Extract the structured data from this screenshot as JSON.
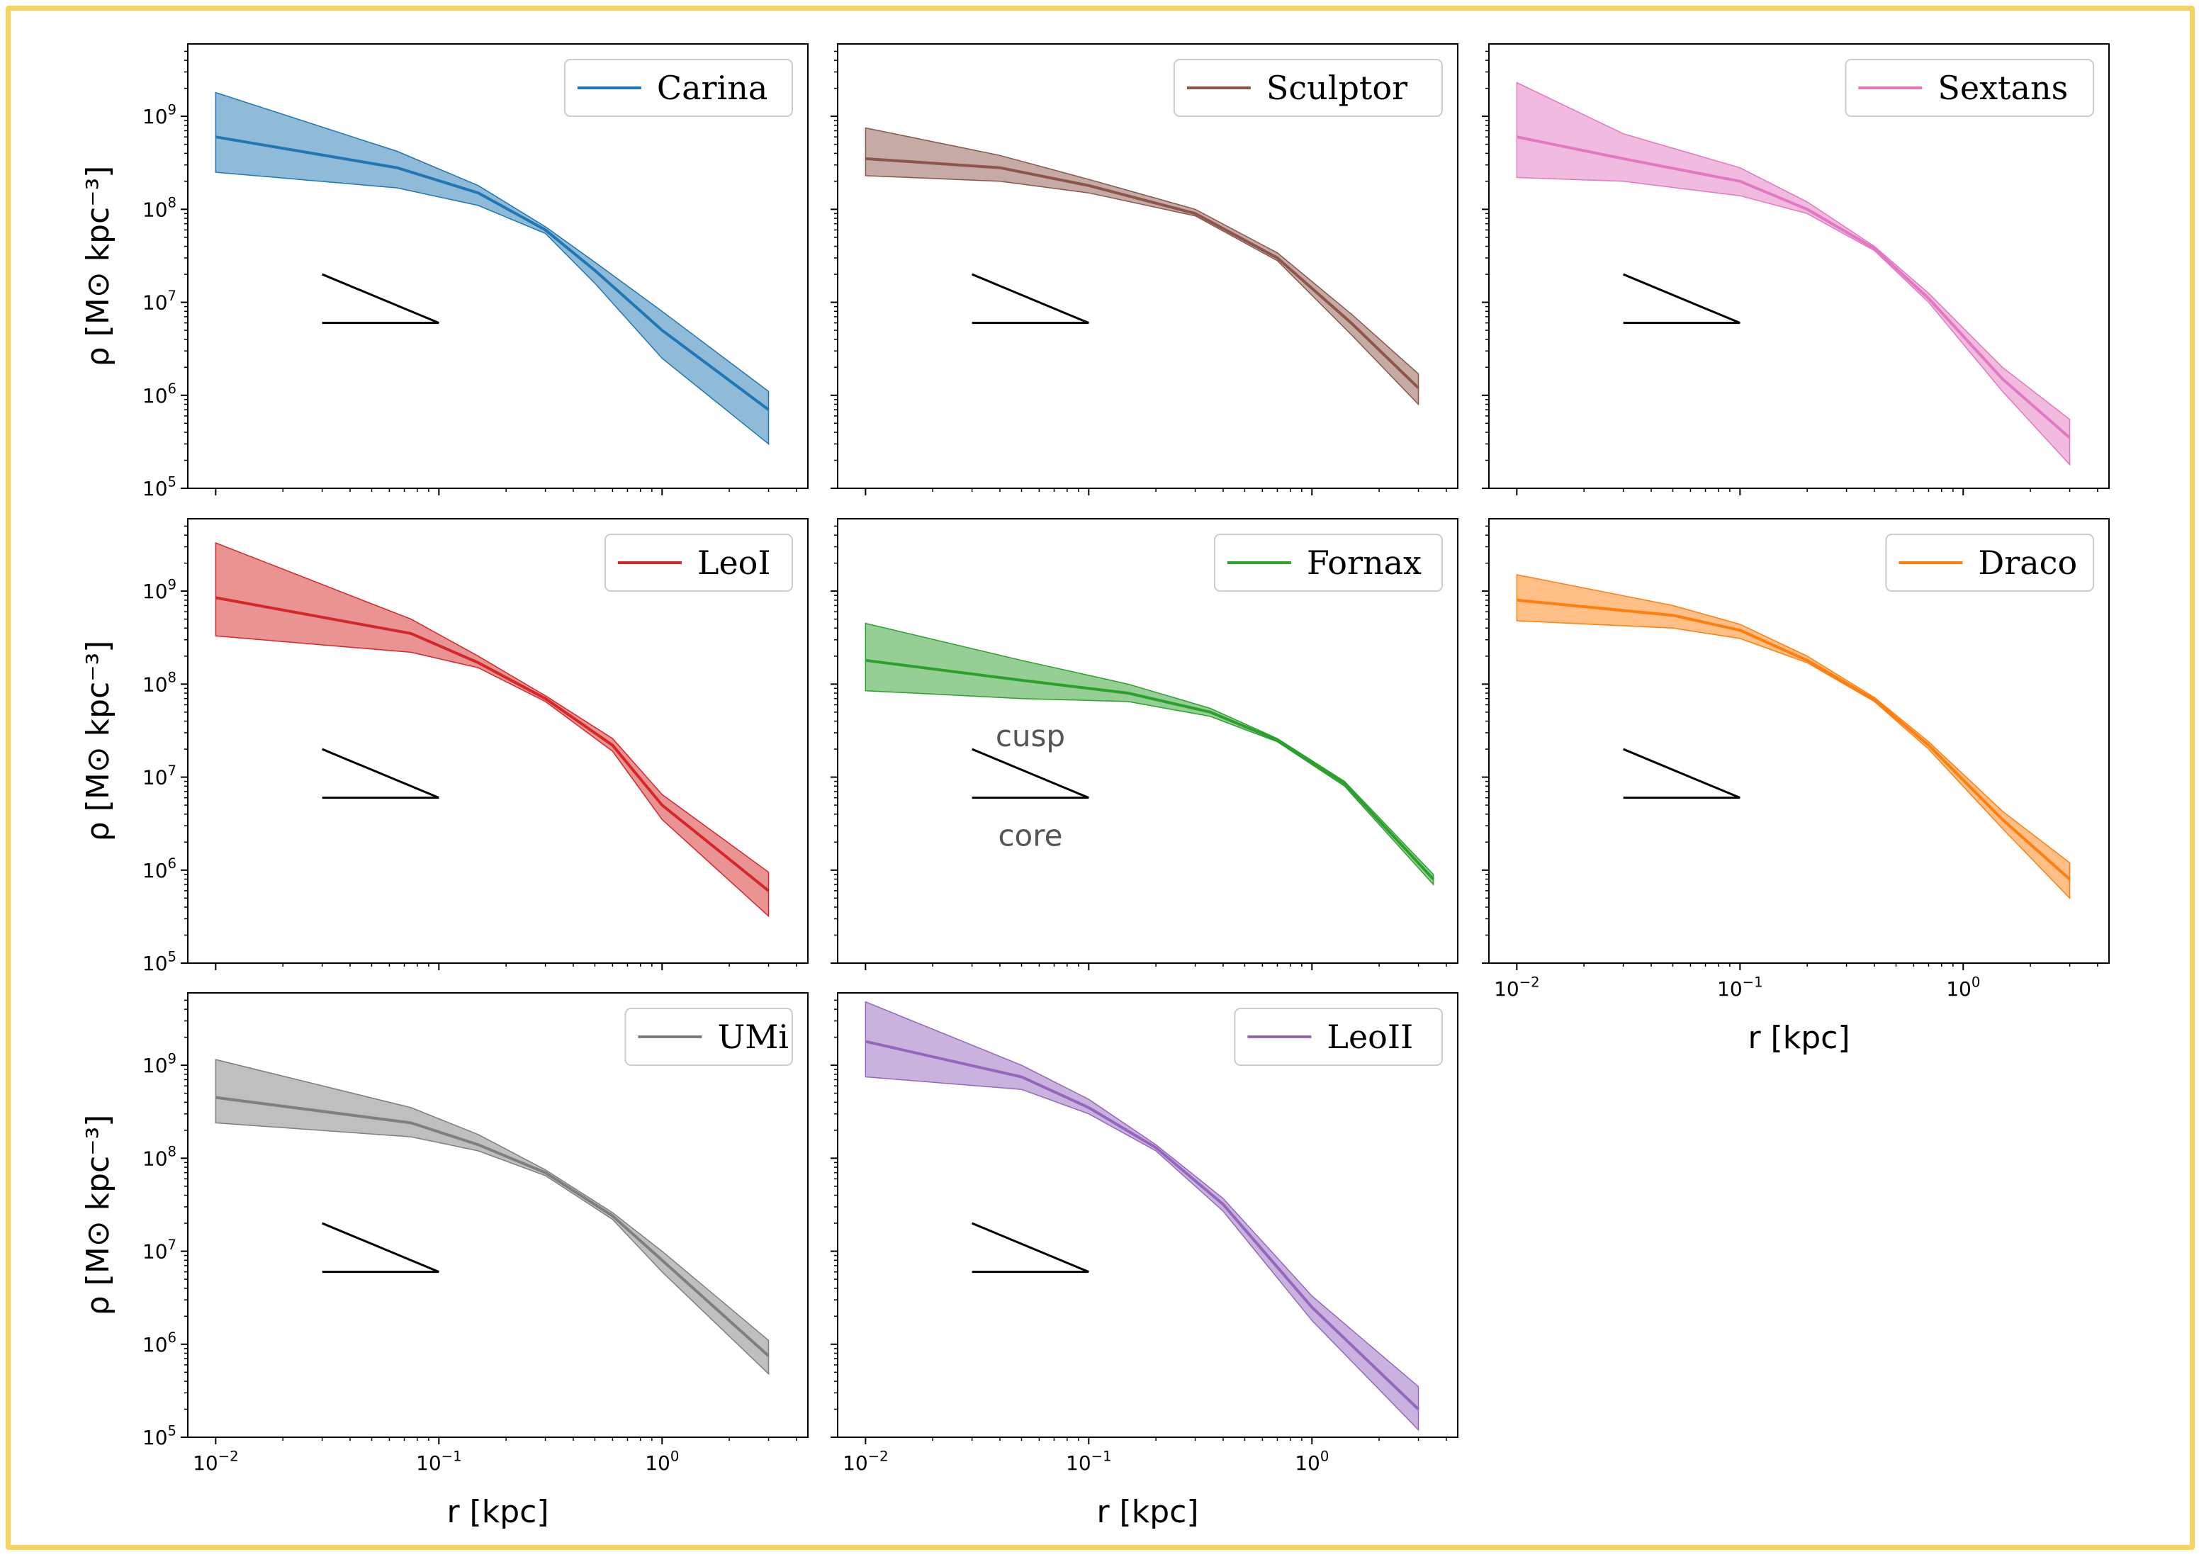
{
  "figure": {
    "frame_color": "#f8d360",
    "ylabel": "ρ [M⊙ kpc⁻³]",
    "xlabel": "r [kpc]",
    "xlim": [
      0.0075,
      4.5
    ],
    "ylim": [
      100000,
      6000000000
    ],
    "xticks": [
      {
        "value": 0.01,
        "base": "10",
        "exp": "−2"
      },
      {
        "value": 0.1,
        "base": "10",
        "exp": "−1"
      },
      {
        "value": 1,
        "base": "10",
        "exp": "0"
      }
    ],
    "yticks": [
      {
        "value": 100000,
        "base": "10",
        "exp": "5"
      },
      {
        "value": 1000000,
        "base": "10",
        "exp": "6"
      },
      {
        "value": 10000000,
        "base": "10",
        "exp": "7"
      },
      {
        "value": 100000000,
        "base": "10",
        "exp": "8"
      },
      {
        "value": 1000000000,
        "base": "10",
        "exp": "9"
      }
    ],
    "slope_guide": {
      "cusp": {
        "x": [
          0.03,
          0.1
        ],
        "y": [
          20000000,
          6000000
        ],
        "label": "cusp"
      },
      "core": {
        "x": [
          0.03,
          0.1
        ],
        "y": [
          6000000,
          6000000
        ],
        "label": "core"
      }
    }
  },
  "chart_data": [
    {
      "type": "line",
      "name": "Carina",
      "color": "#1f77b4",
      "row": 0,
      "col": 0,
      "x": [
        0.01,
        0.065,
        0.15,
        0.3,
        0.5,
        1.0,
        3.0
      ],
      "y": [
        600000000,
        280000000,
        150000000,
        60000000,
        22000000,
        5000000,
        700000
      ],
      "y_low": [
        250000000,
        170000000,
        110000000,
        55000000,
        16000000,
        2500000,
        300000
      ],
      "y_high": [
        1800000000,
        420000000,
        180000000,
        65000000,
        27000000,
        8000000,
        1100000
      ],
      "annotations": false
    },
    {
      "type": "line",
      "name": "Sculptor",
      "color": "#8c564b",
      "row": 0,
      "col": 1,
      "x": [
        0.01,
        0.04,
        0.1,
        0.3,
        0.7,
        1.5,
        3.0
      ],
      "y": [
        350000000,
        280000000,
        180000000,
        90000000,
        30000000,
        6000000,
        1200000
      ],
      "y_low": [
        230000000,
        200000000,
        150000000,
        85000000,
        28000000,
        4500000,
        800000
      ],
      "y_high": [
        750000000,
        380000000,
        210000000,
        100000000,
        34000000,
        7500000,
        1700000
      ],
      "annotations": false
    },
    {
      "type": "line",
      "name": "Sextans",
      "color": "#e377c2",
      "row": 0,
      "col": 2,
      "x": [
        0.01,
        0.03,
        0.1,
        0.2,
        0.4,
        0.7,
        1.5,
        3.0
      ],
      "y": [
        600000000,
        350000000,
        200000000,
        100000000,
        38000000,
        11000000,
        1500000,
        350000
      ],
      "y_low": [
        220000000,
        200000000,
        140000000,
        90000000,
        36000000,
        10000000,
        1100000,
        180000
      ],
      "y_high": [
        2300000000,
        650000000,
        280000000,
        120000000,
        40000000,
        12500000,
        2000000,
        550000
      ],
      "annotations": false
    },
    {
      "type": "line",
      "name": "LeoI",
      "color": "#d62728",
      "row": 1,
      "col": 0,
      "x": [
        0.01,
        0.075,
        0.15,
        0.3,
        0.6,
        1.0,
        3.0
      ],
      "y": [
        850000000,
        350000000,
        170000000,
        70000000,
        22000000,
        5000000,
        600000
      ],
      "y_low": [
        330000000,
        220000000,
        150000000,
        65000000,
        19000000,
        3500000,
        320000
      ],
      "y_high": [
        3300000000,
        500000000,
        200000000,
        75000000,
        26000000,
        6500000,
        950000
      ],
      "annotations": false
    },
    {
      "type": "line",
      "name": "Fornax",
      "color": "#2ca02c",
      "row": 1,
      "col": 1,
      "x": [
        0.01,
        0.05,
        0.15,
        0.35,
        0.7,
        1.4,
        3.5
      ],
      "y": [
        180000000,
        110000000,
        80000000,
        50000000,
        25000000,
        8500000,
        800000
      ],
      "y_low": [
        85000000,
        70000000,
        65000000,
        45000000,
        24000000,
        8000000,
        700000
      ],
      "y_high": [
        450000000,
        180000000,
        100000000,
        55000000,
        26000000,
        9000000,
        900000
      ],
      "annotations": true
    },
    {
      "type": "line",
      "name": "Draco",
      "color": "#ff7f0e",
      "row": 1,
      "col": 2,
      "x": [
        0.01,
        0.05,
        0.1,
        0.2,
        0.4,
        0.7,
        1.5,
        3.0
      ],
      "y": [
        800000000,
        550000000,
        380000000,
        180000000,
        68000000,
        22000000,
        3500000,
        800000
      ],
      "y_low": [
        480000000,
        400000000,
        310000000,
        170000000,
        65000000,
        20000000,
        2800000,
        500000
      ],
      "y_high": [
        1500000000,
        700000000,
        440000000,
        200000000,
        72000000,
        24000000,
        4300000,
        1200000
      ],
      "annotations": false
    },
    {
      "type": "line",
      "name": "UMi",
      "color": "#7f7f7f",
      "row": 2,
      "col": 0,
      "x": [
        0.01,
        0.075,
        0.15,
        0.3,
        0.6,
        1.0,
        3.0
      ],
      "y": [
        450000000,
        240000000,
        140000000,
        70000000,
        24000000,
        8000000,
        750000
      ],
      "y_low": [
        240000000,
        170000000,
        120000000,
        65000000,
        22000000,
        6000000,
        480000
      ],
      "y_high": [
        1150000000,
        350000000,
        180000000,
        75000000,
        26000000,
        10000000,
        1100000
      ],
      "annotations": false
    },
    {
      "type": "line",
      "name": "LeoII",
      "color": "#9467bd",
      "row": 2,
      "col": 1,
      "x": [
        0.01,
        0.05,
        0.1,
        0.2,
        0.4,
        1.0,
        3.0
      ],
      "y": [
        1800000000,
        750000000,
        350000000,
        130000000,
        32000000,
        2500000,
        200000
      ],
      "y_low": [
        750000000,
        550000000,
        300000000,
        120000000,
        27000000,
        1800000,
        120000
      ],
      "y_high": [
        4800000000,
        1000000000,
        430000000,
        140000000,
        37000000,
        3300000,
        350000
      ],
      "annotations": false
    }
  ]
}
